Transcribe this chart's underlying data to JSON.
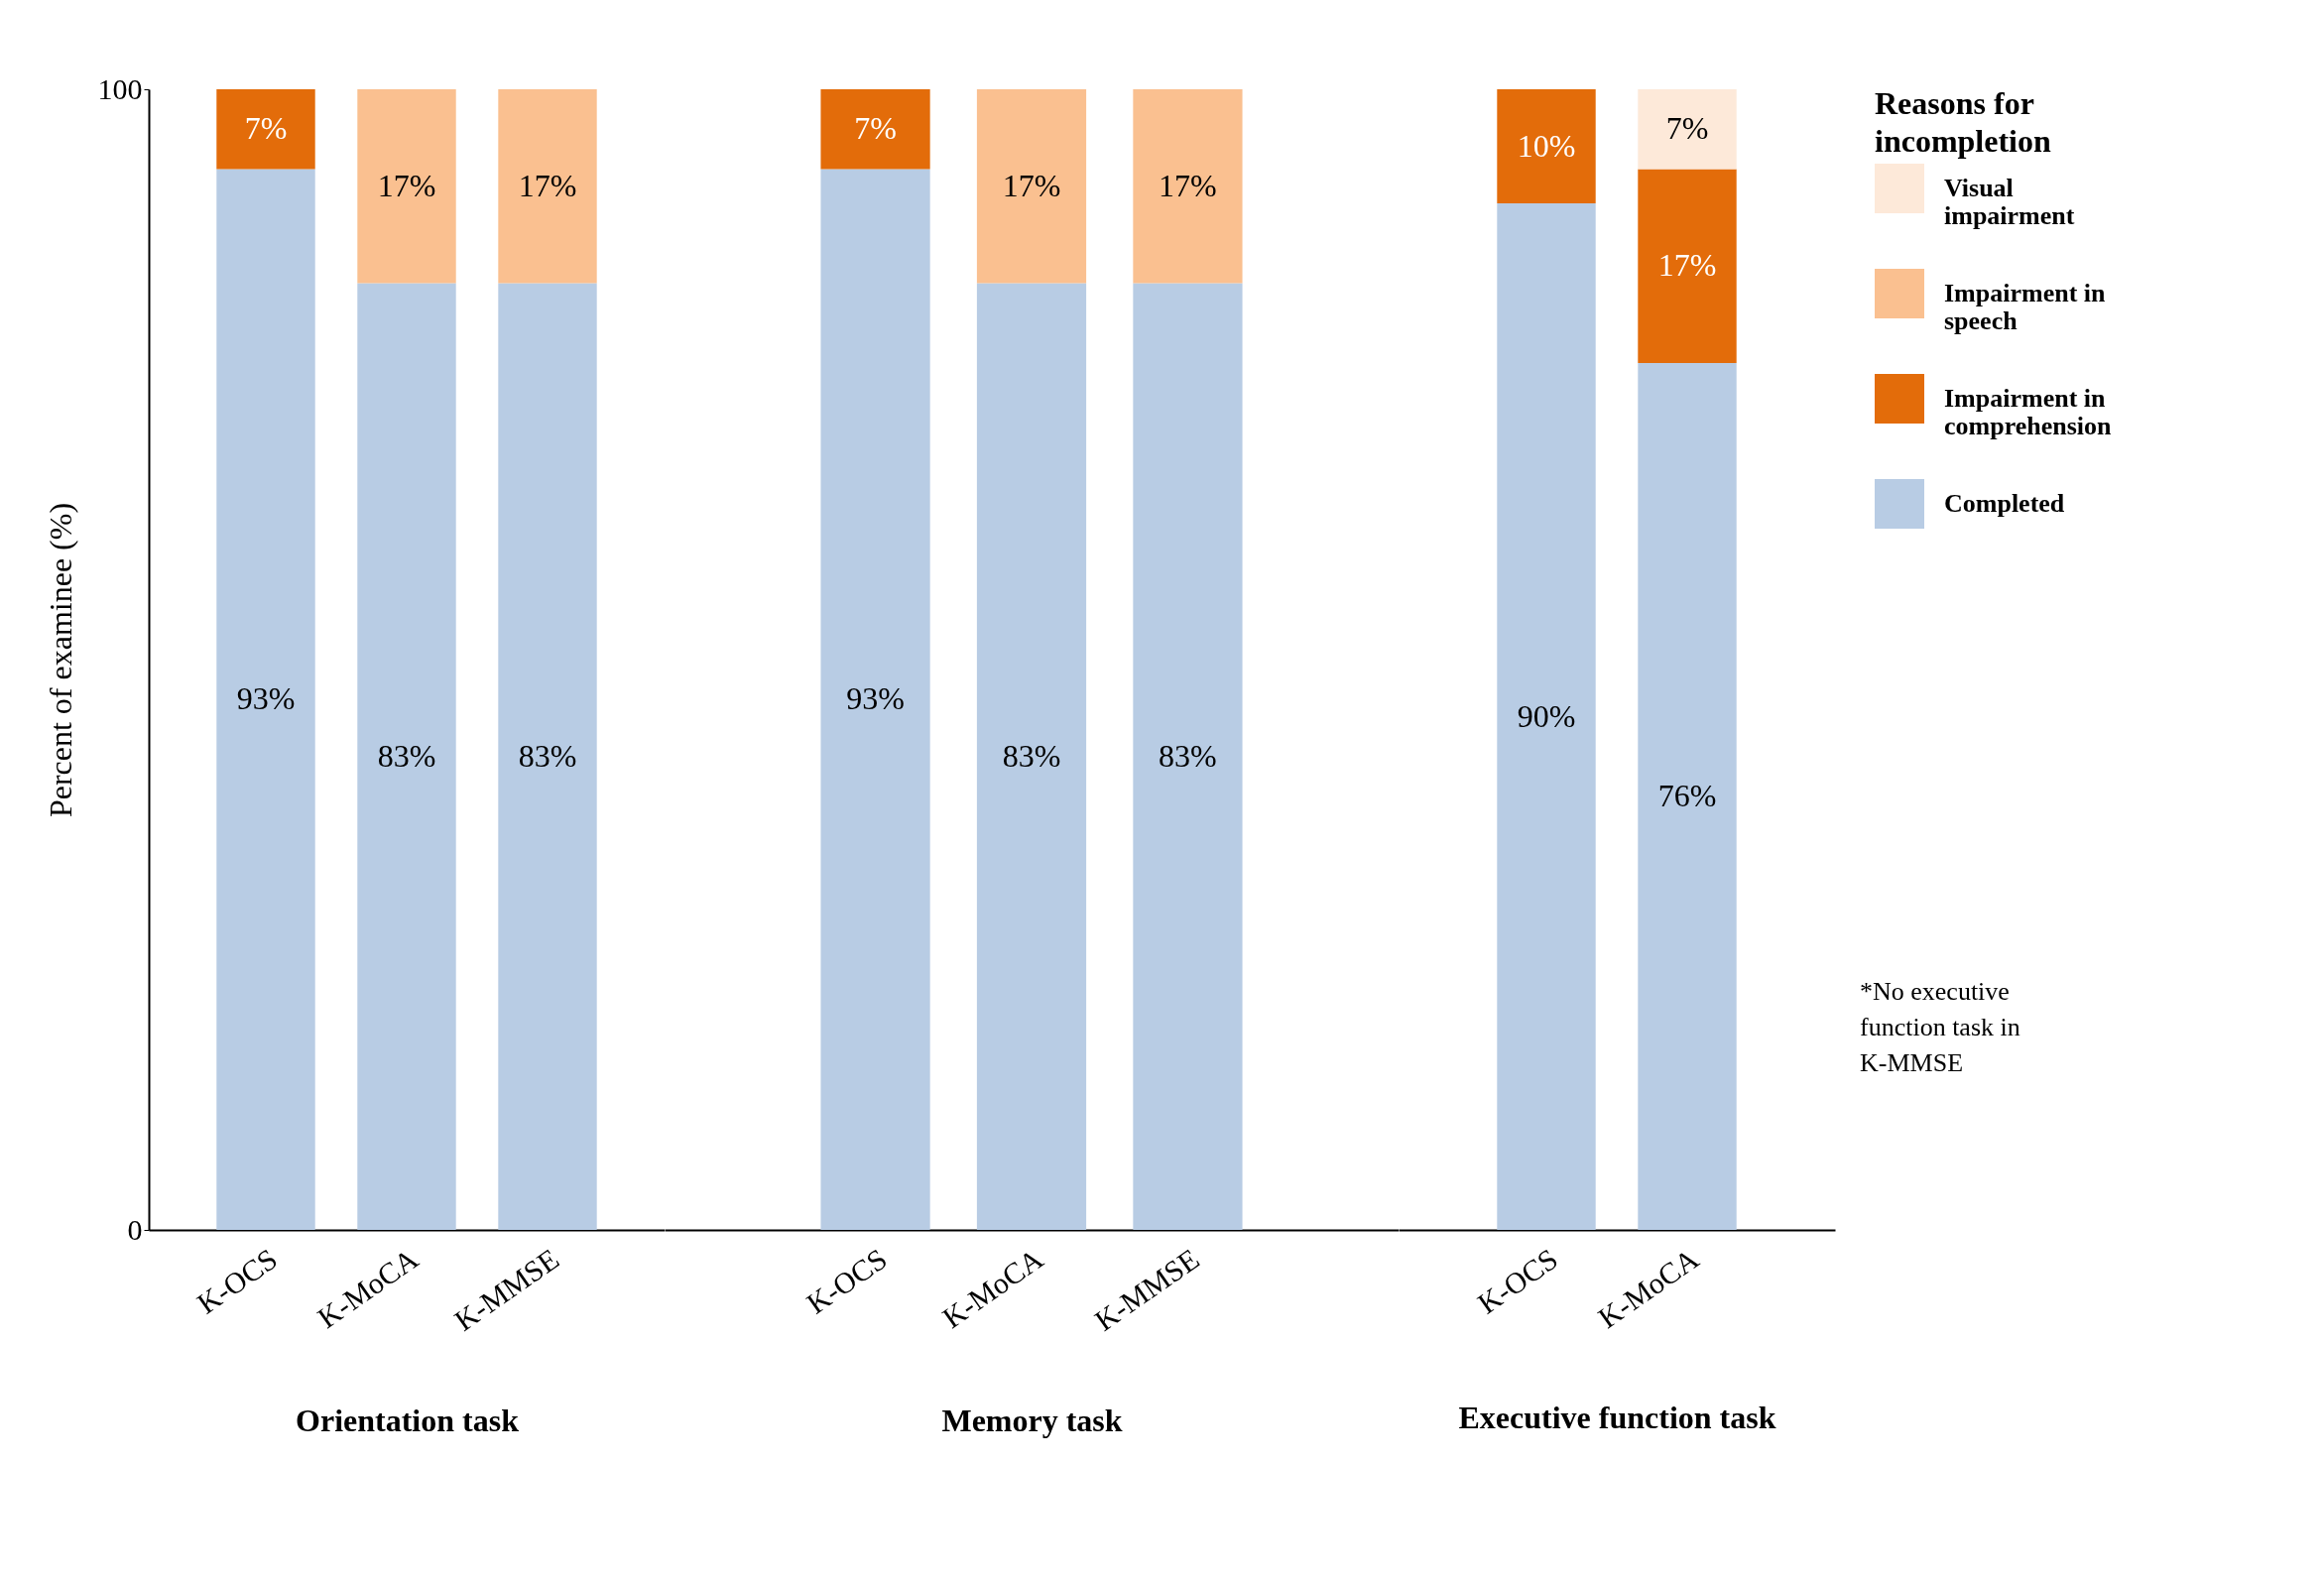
{
  "chart_data": [
    {
      "type": "bar",
      "xlabel": "Orientation task",
      "ylabel": "Percent of examinee (%)",
      "categories": [
        "K-OCS",
        "K-MoCA",
        "K-MMSE"
      ],
      "stacked": true,
      "ylim": [
        0,
        100
      ],
      "yticks": [
        0,
        100
      ],
      "series": [
        {
          "color": "#b8cce4",
          "values": [
            93,
            83,
            83
          ],
          "value_labels": [
            "93%",
            "83%",
            "83%"
          ]
        },
        {
          "color": "#e36c0a",
          "values": [
            7,
            null,
            null
          ],
          "value_labels": [
            "7%",
            null,
            null
          ]
        },
        {
          "color": "#fac090",
          "values": [
            null,
            17,
            17
          ],
          "value_labels": [
            null,
            "17%",
            "17%"
          ]
        }
      ]
    },
    {
      "type": "bar",
      "xlabel": "Memory task",
      "categories": [
        "K-OCS",
        "K-MoCA",
        "K-MMSE"
      ],
      "stacked": true,
      "ylim": [
        0,
        100
      ],
      "tick_labels": "x",
      "series": [
        {
          "color": "#b8cce4",
          "values": [
            93,
            83,
            83
          ],
          "value_labels": [
            "93%",
            "83%",
            "83%"
          ]
        },
        {
          "color": "#e36c0a",
          "values": [
            7,
            null,
            null
          ],
          "value_labels": [
            "7%",
            null,
            null
          ]
        },
        {
          "color": "#fac090",
          "values": [
            null,
            17,
            17
          ],
          "value_labels": [
            null,
            "17%",
            "17%"
          ]
        }
      ]
    },
    {
      "type": "bar",
      "xlabel": "Executive function task",
      "categories": [
        "K-OCS",
        "K-MoCA"
      ],
      "stacked": true,
      "ylim": [
        0,
        100
      ],
      "tick_labels": "x",
      "legend": "right",
      "legend_title": "Reasons for incompletion",
      "annotations": [
        "*No executive function task in K-MMSE"
      ],
      "series": [
        {
          "name": "Completed",
          "color": "#b8cce4",
          "values": [
            90,
            76
          ],
          "value_labels": [
            "90%",
            "76%"
          ]
        },
        {
          "name": "Impairment in comprehension",
          "color": "#e36c0a",
          "values": [
            10,
            17
          ],
          "value_labels": [
            "10%",
            "17%"
          ]
        },
        {
          "name": "Impairment in speech",
          "color": "#fac090",
          "values": [
            null,
            null
          ]
        },
        {
          "name": "Visual impairment",
          "color": "#fde9d9",
          "values": [
            null,
            7
          ],
          "value_labels": [
            null,
            "7%"
          ]
        }
      ]
    }
  ]
}
